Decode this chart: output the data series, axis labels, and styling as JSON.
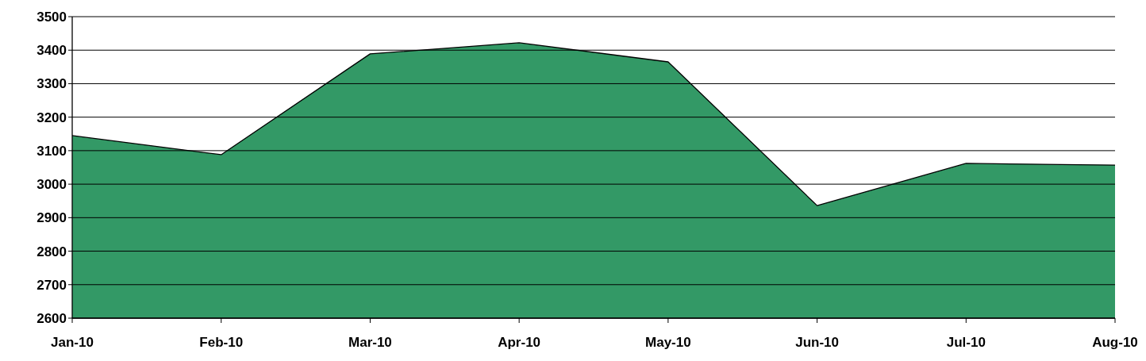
{
  "chart_data": {
    "type": "area",
    "categories": [
      "Jan-10",
      "Feb-10",
      "Mar-10",
      "Apr-10",
      "May-10",
      "Jun-10",
      "Jul-10",
      "Aug-10"
    ],
    "series": [
      {
        "color": "#339966",
        "values": [
          3145,
          3088,
          3389,
          3422,
          3365,
          2936,
          3062,
          3057
        ]
      }
    ],
    "ylim": [
      2600,
      3500
    ],
    "yticks": [
      2600,
      2700,
      2800,
      2900,
      3000,
      3100,
      3200,
      3300,
      3400,
      3500
    ],
    "grid": "y"
  }
}
